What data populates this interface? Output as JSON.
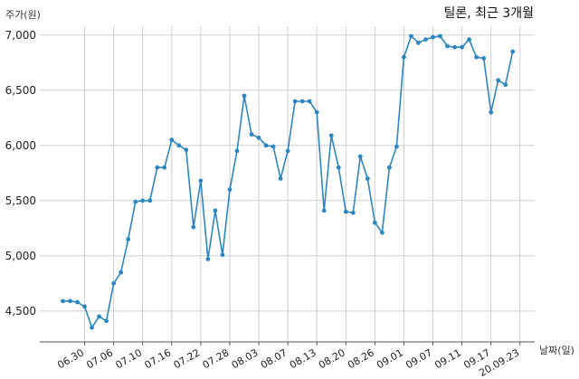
{
  "chart_data": {
    "type": "line",
    "title": "틸론, 최근 3개월",
    "ylabel": "주가(원)",
    "xlabel": "날짜(일)",
    "ylim": [
      4220,
      7080
    ],
    "yticks": [
      4500,
      5000,
      5500,
      6000,
      6500,
      7000
    ],
    "ytick_labels": [
      "4,500",
      "5,000",
      "5,500",
      "6,000",
      "6,500",
      "7,000"
    ],
    "xtick_labels": [
      "06.30",
      "07.06",
      "07.10",
      "07.16",
      "07.22",
      "07.28",
      "08.03",
      "08.07",
      "08.13",
      "08.20",
      "08.26",
      "09.01",
      "09.07",
      "09.11",
      "09.17",
      "20.09.23"
    ],
    "xtick_index": [
      3,
      7,
      11,
      15,
      19,
      23,
      27,
      31,
      35,
      39,
      43,
      47,
      51,
      55,
      59,
      63
    ],
    "grid": true,
    "color": "#2e86c1",
    "series": [
      {
        "values": [
          4590,
          4590,
          4580,
          4540,
          4350,
          4450,
          4410,
          4750,
          4850,
          5150,
          5490,
          5500,
          5500,
          5800,
          5800,
          6050,
          6000,
          5960,
          5260,
          5680,
          4970,
          5410,
          5010,
          5600,
          5950,
          6450,
          6100,
          6070,
          6000,
          5990,
          5700,
          5950,
          6400,
          6400,
          6400,
          6300,
          5410,
          6090,
          5800,
          5400,
          5390,
          5900,
          5700,
          5300,
          5210,
          5800,
          5990,
          6800,
          6990,
          6930,
          6960,
          6980,
          6990,
          6900,
          6890,
          6890,
          6960,
          6800,
          6790,
          6300,
          6590,
          6550,
          6850
        ]
      }
    ]
  }
}
